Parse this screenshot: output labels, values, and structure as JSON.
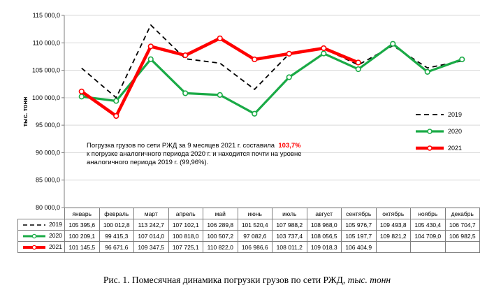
{
  "chart_data": {
    "type": "line",
    "ylabel": "тыс. тонн",
    "ylim": [
      80000,
      115000
    ],
    "y_ticks": [
      "80 000,0",
      "85 000,0",
      "90 000,0",
      "95 000,0",
      "100 000,0",
      "105 000,0",
      "110 000,0",
      "115 000,0"
    ],
    "y_tick_values": [
      80000,
      85000,
      90000,
      95000,
      100000,
      105000,
      110000,
      115000
    ],
    "grid": true,
    "legend_position": "right",
    "categories": [
      "январь",
      "февраль",
      "март",
      "апрель",
      "май",
      "июнь",
      "июль",
      "август",
      "сентябрь",
      "октябрь",
      "ноябрь",
      "декабрь"
    ],
    "series": [
      {
        "name": "2019",
        "color": "#000000",
        "style": "dashed",
        "values": [
          105395.6,
          100012.8,
          113242.7,
          107102.1,
          106289.8,
          101520.4,
          107988.2,
          108968.0,
          105976.7,
          109493.8,
          105430.4,
          106704.7
        ],
        "labels": [
          "105 395,6",
          "100 012,8",
          "113 242,7",
          "107 102,1",
          "106 289,8",
          "101 520,4",
          "107 988,2",
          "108 968,0",
          "105 976,7",
          "109 493,8",
          "105 430,4",
          "106 704,7"
        ]
      },
      {
        "name": "2020",
        "color": "#1aaa46",
        "style": "solid",
        "values": [
          100209.1,
          99415.3,
          107014.0,
          100818.0,
          100507.2,
          97082.6,
          103737.4,
          108056.5,
          105197.7,
          109821.2,
          104709.0,
          106982.5
        ],
        "labels": [
          "100 209,1",
          "99 415,3",
          "107 014,0",
          "100 818,0",
          "100 507,2",
          "97 082,6",
          "103 737,4",
          "108 056,5",
          "105 197,7",
          "109 821,2",
          "104 709,0",
          "106 982,5"
        ]
      },
      {
        "name": "2021",
        "color": "#ff0000",
        "style": "solid",
        "values": [
          101145.5,
          96671.6,
          109347.5,
          107725.1,
          110822.0,
          106986.6,
          108011.2,
          109018.3,
          106404.9,
          null,
          null,
          null
        ],
        "labels": [
          "101 145,5",
          "96 671,6",
          "109 347,5",
          "107 725,1",
          "110 822,0",
          "106 986,6",
          "108 011,2",
          "109 018,3",
          "106 404,9",
          "",
          "",
          ""
        ]
      }
    ]
  },
  "annotation": {
    "line1_text": "Погрузка грузов по сети РЖД за 9 месяцев 2021 г. составила",
    "line1_highlight": "103,7%",
    "line2": "к погрузке аналогичного периода  2020 г. и находится почти на уровне",
    "line3": "аналогичного периода 2019 г. (99,96%)."
  },
  "caption": {
    "main": "Рис. 1. Помесячная динамика погрузки грузов по сети РЖД, ",
    "units": "тыс. тонн"
  }
}
